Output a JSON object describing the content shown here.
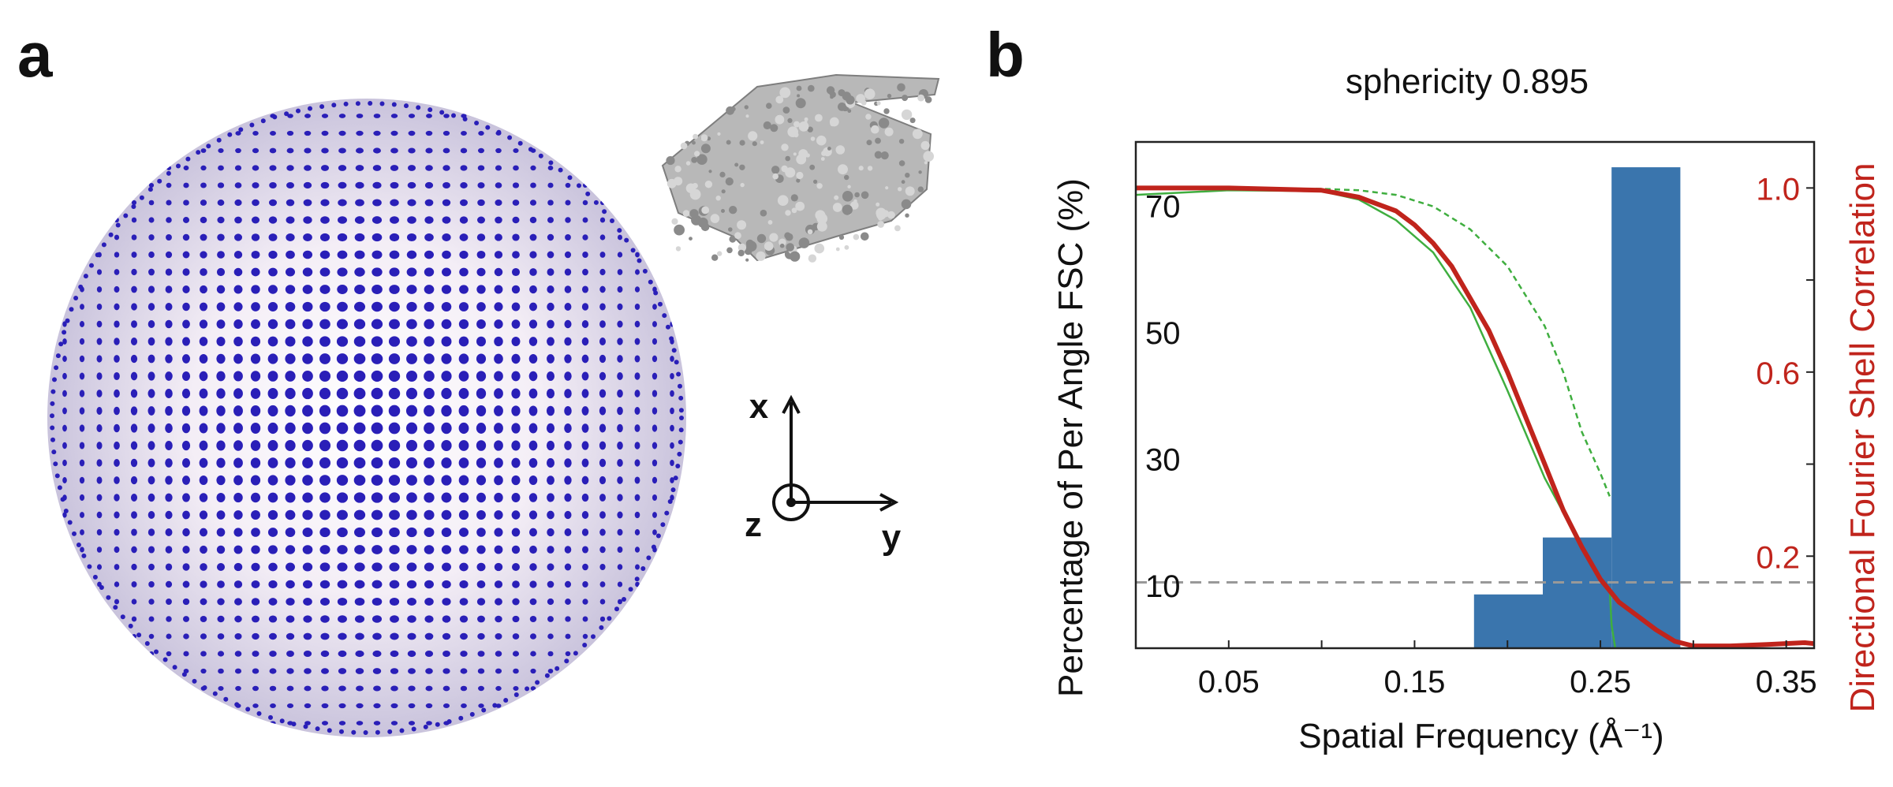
{
  "panels": {
    "a": {
      "label": "a",
      "axes_labels": {
        "x": "x",
        "y": "y",
        "z": "z"
      },
      "sphere_color": "#2a1fb8",
      "model_color": "#9a9a9a"
    },
    "b": {
      "label": "b"
    }
  },
  "chart_data": {
    "type": "bar",
    "title": "sphericity 0.895",
    "xlabel": "Spatial Frequency (Å⁻¹)",
    "ylabel_left": "Percentage of  Per Angle FSC (%)",
    "ylabel_right": "Directional Fourier Shell Correlation",
    "xlim": [
      0.0,
      0.365
    ],
    "ylim_left": [
      0,
      80
    ],
    "ylim_right": [
      0,
      1.1
    ],
    "x_ticks": [
      0.05,
      0.15,
      0.25,
      0.35
    ],
    "x_tick_labels": [
      "0.05",
      "0.15",
      "0.25",
      "0.35"
    ],
    "y_left_ticks": [
      10,
      30,
      50,
      70
    ],
    "y_left_tick_labels": [
      "10",
      "30",
      "50",
      "70"
    ],
    "y_right_ticks": [
      0.2,
      0.6,
      1.0
    ],
    "y_right_tick_labels": [
      "0.2",
      "0.6",
      "1.0"
    ],
    "histogram": {
      "color": "#3a75ad",
      "bins": [
        {
          "x0": 0.182,
          "x1": 0.219,
          "value": 8.5
        },
        {
          "x0": 0.219,
          "x1": 0.256,
          "value": 17.5
        },
        {
          "x0": 0.256,
          "x1": 0.293,
          "value": 76
        }
      ]
    },
    "global_fsc": {
      "color": "#c0241c",
      "x": [
        0.0,
        0.05,
        0.1,
        0.12,
        0.14,
        0.15,
        0.16,
        0.17,
        0.18,
        0.19,
        0.2,
        0.21,
        0.22,
        0.23,
        0.24,
        0.25,
        0.26,
        0.27,
        0.28,
        0.29,
        0.3,
        0.32,
        0.34,
        0.36,
        0.365
      ],
      "y": [
        1.0,
        1.0,
        0.995,
        0.98,
        0.95,
        0.92,
        0.88,
        0.83,
        0.76,
        0.69,
        0.6,
        0.5,
        0.4,
        0.3,
        0.22,
        0.15,
        0.1,
        0.07,
        0.04,
        0.015,
        0.005,
        0.005,
        0.008,
        0.012,
        0.01
      ]
    },
    "fsc_spread_dashed": {
      "color": "#3fae3f",
      "x": [
        0.0,
        0.05,
        0.1,
        0.12,
        0.14,
        0.16,
        0.18,
        0.2,
        0.22,
        0.23,
        0.24,
        0.25,
        0.255
      ],
      "y": [
        1.0,
        1.0,
        0.998,
        0.995,
        0.985,
        0.96,
        0.91,
        0.83,
        0.7,
        0.6,
        0.47,
        0.38,
        0.33
      ]
    },
    "fsc_spread_solid": {
      "color": "#3fae3f",
      "x": [
        0.0,
        0.05,
        0.1,
        0.12,
        0.14,
        0.16,
        0.18,
        0.2,
        0.22,
        0.24,
        0.25,
        0.255,
        0.256,
        0.258
      ],
      "y": [
        0.985,
        0.995,
        0.993,
        0.975,
        0.93,
        0.86,
        0.74,
        0.56,
        0.37,
        0.22,
        0.15,
        0.13,
        0.05,
        0.0
      ]
    },
    "threshold": {
      "value": 0.143,
      "color": "#999999"
    }
  }
}
